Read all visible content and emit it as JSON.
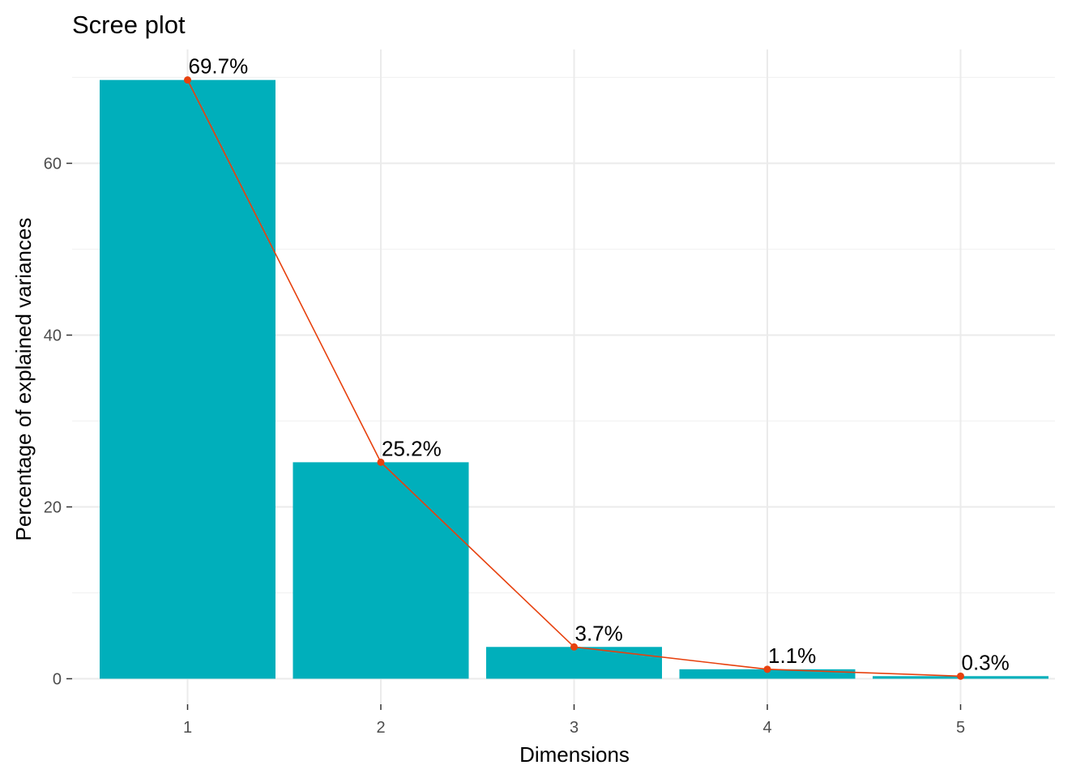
{
  "chart_data": {
    "type": "bar",
    "title": "Scree plot",
    "xlabel": "Dimensions",
    "ylabel": "Percentage of explained variances",
    "categories": [
      "1",
      "2",
      "3",
      "4",
      "5"
    ],
    "values": [
      69.7,
      25.2,
      3.7,
      1.1,
      0.3
    ],
    "data_labels": [
      "69.7%",
      "25.2%",
      "3.7%",
      "1.1%",
      "0.3%"
    ],
    "y_ticks": [
      0,
      20,
      40,
      60
    ],
    "y_tick_labels": [
      "0",
      "20",
      "40",
      "60"
    ],
    "ylim": [
      0,
      73.2
    ],
    "grid": true,
    "legend": "none",
    "overlay": "line-with-points",
    "colors": {
      "bar": "#00AFBB",
      "line": "#E7410E",
      "background": "#FFFFFF",
      "grid": "#EBEBEB"
    }
  }
}
